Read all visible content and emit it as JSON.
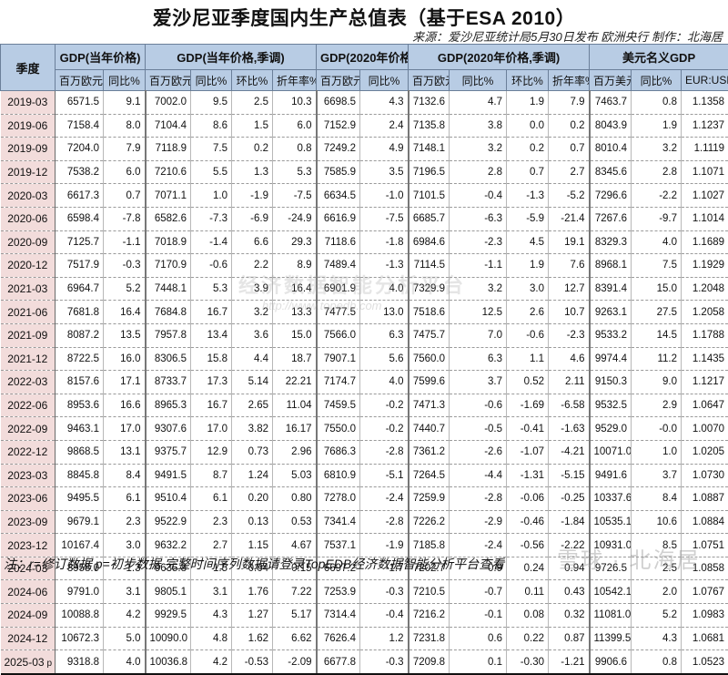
{
  "title": "爱沙尼亚季度国内生产总值表（基于ESA 2010）",
  "source": "来源：爱沙尼亚统计局5月30日发布 欧洲央行 制作：北海居",
  "header": {
    "quarter": "季度",
    "groups": [
      "GDP(当年价格)",
      "GDP(当年价格,季调)",
      "GDP(2020年价格)",
      "GDP(2020年价格,季调)",
      "美元名义GDP"
    ],
    "sub": [
      "百万欧元",
      "同比%",
      "百万欧元",
      "同比%",
      "环比%",
      "折年率%",
      "百万欧元",
      "同比%",
      "百万欧元",
      "同比%",
      "环比%",
      "折年率%",
      "百万美元",
      "同比%",
      "EUR:USD"
    ]
  },
  "colors": {
    "negative": "#ff1a1a",
    "header_bg": "#b8cce4",
    "quarter_bg": "#f2dcdb"
  },
  "rows": [
    {
      "q": "2019-03",
      "v": [
        "6571.5",
        "9.1",
        "7002.0",
        "9.5",
        "2.5",
        "10.3",
        "6698.5",
        "4.3",
        "7132.6",
        "4.7",
        "1.9",
        "7.9",
        "7463.7",
        "0.8",
        "1.1358"
      ],
      "neg": []
    },
    {
      "q": "2019-06",
      "v": [
        "7158.4",
        "8.0",
        "7104.4",
        "8.6",
        "1.5",
        "6.0",
        "7152.9",
        "2.4",
        "7135.8",
        "3.8",
        "0.0",
        "0.2",
        "8043.9",
        "1.9",
        "1.1237"
      ],
      "neg": []
    },
    {
      "q": "2019-09",
      "v": [
        "7204.0",
        "7.9",
        "7118.9",
        "7.5",
        "0.2",
        "0.8",
        "7249.2",
        "4.9",
        "7148.1",
        "3.2",
        "0.2",
        "0.7",
        "8010.4",
        "3.2",
        "1.1119"
      ],
      "neg": []
    },
    {
      "q": "2019-12",
      "v": [
        "7538.2",
        "6.0",
        "7210.6",
        "5.5",
        "1.3",
        "5.3",
        "7585.9",
        "3.5",
        "7196.5",
        "2.8",
        "0.7",
        "2.7",
        "8345.6",
        "2.8",
        "1.1071"
      ],
      "neg": []
    },
    {
      "q": "2020-03",
      "v": [
        "6617.3",
        "0.7",
        "7071.1",
        "1.0",
        "-1.9",
        "-7.5",
        "6634.5",
        "-1.0",
        "7101.5",
        "-0.4",
        "-1.3",
        "-5.2",
        "7296.6",
        "-2.2",
        "1.1027"
      ],
      "neg": [
        4,
        5,
        7,
        9,
        10,
        11,
        13
      ]
    },
    {
      "q": "2020-06",
      "v": [
        "6598.4",
        "-7.8",
        "6582.6",
        "-7.3",
        "-6.9",
        "-24.9",
        "6616.9",
        "-7.5",
        "6685.7",
        "-6.3",
        "-5.9",
        "-21.4",
        "7267.6",
        "-9.7",
        "1.1014"
      ],
      "neg": [
        1,
        4,
        5,
        7,
        9,
        10,
        11,
        13
      ]
    },
    {
      "q": "2020-09",
      "v": [
        "7125.7",
        "-1.1",
        "7018.9",
        "-1.4",
        "6.6",
        "29.3",
        "7118.6",
        "-1.8",
        "6984.6",
        "-2.3",
        "4.5",
        "19.1",
        "8329.3",
        "4.0",
        "1.1689"
      ],
      "neg": [
        1,
        7,
        9
      ]
    },
    {
      "q": "2020-12",
      "v": [
        "7517.9",
        "-0.3",
        "7170.9",
        "-0.6",
        "2.2",
        "8.9",
        "7489.4",
        "-1.3",
        "7114.5",
        "-1.1",
        "1.9",
        "7.6",
        "8968.1",
        "7.5",
        "1.1929"
      ],
      "neg": [
        1,
        7,
        9
      ]
    },
    {
      "q": "2021-03",
      "v": [
        "6964.7",
        "5.2",
        "7448.1",
        "5.3",
        "3.9",
        "16.4",
        "6901.9",
        "4.0",
        "7329.9",
        "3.2",
        "3.0",
        "12.7",
        "8391.4",
        "15.0",
        "1.2048"
      ],
      "neg": []
    },
    {
      "q": "2021-06",
      "v": [
        "7681.8",
        "16.4",
        "7684.8",
        "16.7",
        "3.2",
        "13.3",
        "7477.5",
        "13.0",
        "7518.6",
        "12.5",
        "2.6",
        "10.7",
        "9263.1",
        "27.5",
        "1.2058"
      ],
      "neg": []
    },
    {
      "q": "2021-09",
      "v": [
        "8087.2",
        "13.5",
        "7957.8",
        "13.4",
        "3.6",
        "15.0",
        "7566.0",
        "6.3",
        "7475.7",
        "7.0",
        "-0.6",
        "-2.3",
        "9533.2",
        "14.5",
        "1.1788"
      ],
      "neg": [
        10,
        11
      ]
    },
    {
      "q": "2021-12",
      "v": [
        "8722.5",
        "16.0",
        "8306.5",
        "15.8",
        "4.4",
        "18.7",
        "7907.1",
        "5.6",
        "7560.0",
        "6.3",
        "1.1",
        "4.6",
        "9974.4",
        "11.2",
        "1.1435"
      ],
      "neg": []
    },
    {
      "q": "2022-03",
      "v": [
        "8157.6",
        "17.1",
        "8733.7",
        "17.3",
        "5.14",
        "22.21",
        "7174.7",
        "4.0",
        "7599.6",
        "3.7",
        "0.52",
        "2.11",
        "9150.3",
        "9.0",
        "1.1217"
      ],
      "neg": []
    },
    {
      "q": "2022-06",
      "v": [
        "8953.6",
        "16.6",
        "8965.3",
        "16.7",
        "2.65",
        "11.04",
        "7459.5",
        "-0.2",
        "7471.3",
        "-0.6",
        "-1.69",
        "-6.58",
        "9532.5",
        "2.9",
        "1.0647"
      ],
      "neg": [
        7,
        9,
        10,
        11
      ]
    },
    {
      "q": "2022-09",
      "v": [
        "9463.1",
        "17.0",
        "9307.6",
        "17.0",
        "3.82",
        "16.17",
        "7550.0",
        "-0.2",
        "7440.7",
        "-0.5",
        "-0.41",
        "-1.63",
        "9529.0",
        "-0.0",
        "1.0070"
      ],
      "neg": [
        7,
        9,
        10,
        11,
        13
      ]
    },
    {
      "q": "2022-12",
      "v": [
        "9868.5",
        "13.1",
        "9375.7",
        "12.9",
        "0.73",
        "2.96",
        "7686.3",
        "-2.8",
        "7361.2",
        "-2.6",
        "-1.07",
        "-4.21",
        "10071.0",
        "1.0",
        "1.0205"
      ],
      "neg": [
        7,
        9,
        10,
        11
      ]
    },
    {
      "q": "2023-03",
      "v": [
        "8845.8",
        "8.4",
        "9491.5",
        "8.7",
        "1.24",
        "5.03",
        "6810.9",
        "-5.1",
        "7264.5",
        "-4.4",
        "-1.31",
        "-5.15",
        "9491.6",
        "3.7",
        "1.0730"
      ],
      "neg": [
        7,
        9,
        10,
        11
      ]
    },
    {
      "q": "2023-06",
      "v": [
        "9495.5",
        "6.1",
        "9510.4",
        "6.1",
        "0.20",
        "0.80",
        "7278.0",
        "-2.4",
        "7259.9",
        "-2.8",
        "-0.06",
        "-0.25",
        "10337.6",
        "8.4",
        "1.0887"
      ],
      "neg": [
        7,
        9,
        10,
        11
      ]
    },
    {
      "q": "2023-09",
      "v": [
        "9679.1",
        "2.3",
        "9522.9",
        "2.3",
        "0.13",
        "0.53",
        "7341.4",
        "-2.8",
        "7226.2",
        "-2.9",
        "-0.46",
        "-1.84",
        "10535.1",
        "10.6",
        "1.0884"
      ],
      "neg": [
        7,
        9,
        10,
        11
      ]
    },
    {
      "q": "2023-12",
      "v": [
        "10167.4",
        "3.0",
        "9632.2",
        "2.7",
        "1.15",
        "4.67",
        "7537.1",
        "-1.9",
        "7185.8",
        "-2.4",
        "-0.56",
        "-2.22",
        "10931.0",
        "8.5",
        "1.0751"
      ],
      "neg": [
        7,
        9,
        10,
        11
      ]
    },
    {
      "q": "2024-03",
      "v": [
        "8958.0",
        "1.3",
        "9635.8",
        "1.5",
        "0.04",
        "0.15",
        "6697.2",
        "-1.7",
        "7202.7",
        "-0.9",
        "0.24",
        "0.94",
        "9726.5",
        "2.5",
        "1.0858"
      ],
      "neg": [
        7,
        9
      ]
    },
    {
      "q": "2024-06",
      "v": [
        "9791.0",
        "3.1",
        "9805.1",
        "3.1",
        "1.76",
        "7.22",
        "7253.9",
        "-0.3",
        "7210.5",
        "-0.7",
        "0.11",
        "0.43",
        "10542.1",
        "2.0",
        "1.0767"
      ],
      "neg": [
        7,
        9
      ]
    },
    {
      "q": "2024-09",
      "v": [
        "10088.8",
        "4.2",
        "9929.5",
        "4.3",
        "1.27",
        "5.17",
        "7314.4",
        "-0.4",
        "7216.2",
        "-0.1",
        "0.08",
        "0.32",
        "11081.0",
        "5.2",
        "1.0983"
      ],
      "neg": [
        7,
        9
      ]
    },
    {
      "q": "2024-12",
      "v": [
        "10672.3",
        "5.0",
        "10090.0",
        "4.8",
        "1.62",
        "6.62",
        "7626.4",
        "1.2",
        "7231.8",
        "0.6",
        "0.22",
        "0.87",
        "11399.5",
        "4.3",
        "1.0681"
      ],
      "neg": []
    },
    {
      "q": "2025-03",
      "mark": "p",
      "v": [
        "9318.8",
        "4.0",
        "10036.8",
        "4.2",
        "-0.53",
        "-2.09",
        "6677.8",
        "-0.3",
        "7209.8",
        "0.1",
        "-0.30",
        "-1.21",
        "9906.6",
        "0.8",
        "1.0523"
      ],
      "neg": [
        4,
        5,
        7,
        10,
        11
      ]
    }
  ],
  "footnote": "注：r=修订数据 p=初步数据 完整时间序列数据请登录TopEDB经济数据智能分析平台查看",
  "watermarks": {
    "center": "经济数据智能分析平台",
    "center_url": "http://www.topedb.com",
    "corner": "雪球 · 北海居"
  }
}
